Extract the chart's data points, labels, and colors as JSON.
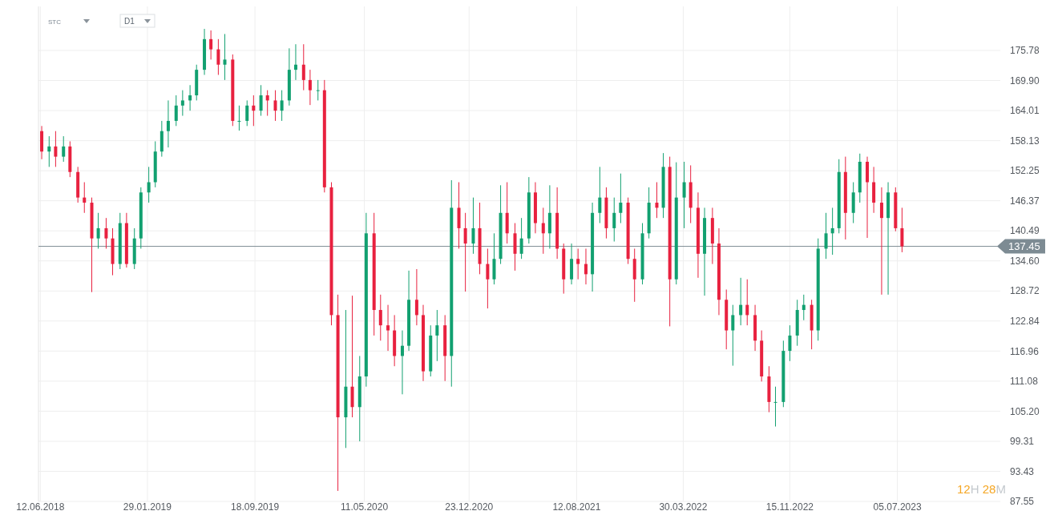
{
  "chart_data": {
    "type": "candlestick",
    "annotations": [
      "STC",
      "D1",
      "12H 28M"
    ],
    "x": [
      "2018-06-15",
      "2018-07-01",
      "2018-07-15",
      "2018-08-01",
      "2018-08-15",
      "2018-09-01",
      "2018-09-15",
      "2018-10-01",
      "2018-10-15",
      "2018-11-01",
      "2018-11-15",
      "2018-12-01",
      "2018-12-15",
      "2019-01-01",
      "2019-01-15",
      "2019-02-01",
      "2019-02-15",
      "2019-03-01",
      "2019-03-15",
      "2019-04-01",
      "2019-04-15",
      "2019-05-01",
      "2019-05-15",
      "2019-06-01",
      "2019-06-15",
      "2019-07-01",
      "2019-07-15",
      "2019-08-01",
      "2019-08-15",
      "2019-09-01",
      "2019-09-15",
      "2019-10-01",
      "2019-10-15",
      "2019-11-01",
      "2019-11-15",
      "2019-12-01",
      "2019-12-15",
      "2020-01-01",
      "2020-01-15",
      "2020-02-01",
      "2020-02-15",
      "2020-03-01",
      "2020-03-15",
      "2020-04-01",
      "2020-04-15",
      "2020-05-01",
      "2020-05-15",
      "2020-06-01",
      "2020-06-15",
      "2020-07-01",
      "2020-07-15",
      "2020-08-01",
      "2020-08-15",
      "2020-09-01",
      "2020-09-15",
      "2020-10-01",
      "2020-10-15",
      "2020-11-01",
      "2020-11-15",
      "2020-12-01",
      "2020-12-15",
      "2021-01-01",
      "2021-01-15",
      "2021-02-01",
      "2021-02-15",
      "2021-03-01",
      "2021-03-15",
      "2021-04-01",
      "2021-04-15",
      "2021-05-01",
      "2021-05-15",
      "2021-06-01",
      "2021-06-15",
      "2021-07-01",
      "2021-07-15",
      "2021-08-01",
      "2021-08-15",
      "2021-09-01",
      "2021-09-15",
      "2021-10-01",
      "2021-10-15",
      "2021-11-01",
      "2021-11-15",
      "2021-12-01",
      "2021-12-15",
      "2022-01-01",
      "2022-01-15",
      "2022-02-01",
      "2022-02-15",
      "2022-03-01",
      "2022-03-15",
      "2022-04-01",
      "2022-04-15",
      "2022-05-01",
      "2022-05-15",
      "2022-06-01",
      "2022-06-15",
      "2022-07-01",
      "2022-07-15",
      "2022-08-01",
      "2022-08-15",
      "2022-09-01",
      "2022-09-15",
      "2022-10-01",
      "2022-10-15",
      "2022-11-01",
      "2022-11-15",
      "2022-12-01",
      "2022-12-15",
      "2023-01-01",
      "2023-01-15",
      "2023-02-01",
      "2023-02-15",
      "2023-03-01",
      "2023-03-15",
      "2023-04-01",
      "2023-04-15",
      "2023-05-01",
      "2023-05-15",
      "2023-06-01",
      "2023-06-15",
      "2023-07-01",
      "2023-07-15"
    ],
    "ohlc": [
      [
        160,
        161,
        154.5,
        156
      ],
      [
        156,
        159,
        153,
        157
      ],
      [
        157,
        160,
        153,
        155
      ],
      [
        155,
        159,
        154,
        157
      ],
      [
        157,
        158,
        151,
        152
      ],
      [
        152,
        153,
        146,
        147
      ],
      [
        147,
        150,
        144,
        146
      ],
      [
        146,
        147,
        128.5,
        139
      ],
      [
        139,
        144,
        137,
        141
      ],
      [
        141,
        143,
        137,
        139
      ],
      [
        139,
        141,
        131.8,
        134
      ],
      [
        134,
        144,
        133,
        142
      ],
      [
        142,
        144,
        133.3,
        134
      ],
      [
        134,
        141,
        133,
        139
      ],
      [
        139,
        149,
        137,
        148
      ],
      [
        148,
        153,
        146,
        150
      ],
      [
        150,
        158,
        149,
        156
      ],
      [
        156,
        162,
        155,
        160
      ],
      [
        160,
        166,
        156.8,
        162
      ],
      [
        162,
        167,
        161,
        165
      ],
      [
        165,
        168,
        163,
        166
      ],
      [
        166,
        169,
        164,
        167
      ],
      [
        167,
        173,
        166,
        172
      ],
      [
        172,
        180,
        171,
        178
      ],
      [
        178,
        179.7,
        174,
        176
      ],
      [
        176,
        178,
        171,
        173
      ],
      [
        173,
        179,
        170,
        174
      ],
      [
        174,
        175,
        161,
        162
      ],
      [
        162,
        165,
        160.1,
        162
      ],
      [
        162,
        166,
        161,
        165
      ],
      [
        165,
        167,
        161,
        164
      ],
      [
        164,
        169,
        163,
        167
      ],
      [
        167,
        168,
        163,
        166
      ],
      [
        166,
        168,
        162,
        164
      ],
      [
        164,
        168,
        162,
        166
      ],
      [
        166,
        176.2,
        165,
        172
      ],
      [
        172,
        177,
        170,
        173
      ],
      [
        173,
        177,
        168,
        170
      ],
      [
        170,
        172,
        165.1,
        168
      ],
      [
        168,
        170,
        166,
        168
      ],
      [
        168,
        170,
        148,
        149
      ],
      [
        149,
        150,
        122,
        124
      ],
      [
        124,
        128,
        89.6,
        104
      ],
      [
        104,
        125,
        98,
        110
      ],
      [
        110,
        127.8,
        104,
        106
      ],
      [
        106,
        116,
        99.3,
        112
      ],
      [
        112,
        144,
        110,
        140
      ],
      [
        140,
        144,
        120,
        125
      ],
      [
        125,
        128,
        119,
        122
      ],
      [
        122,
        126,
        117,
        121
      ],
      [
        121,
        124,
        114,
        116
      ],
      [
        116,
        121,
        108.5,
        118
      ],
      [
        118,
        132.7,
        117,
        127
      ],
      [
        127,
        133,
        122,
        124
      ],
      [
        124,
        126,
        111.1,
        113
      ],
      [
        113,
        122,
        112,
        120
      ],
      [
        120,
        125,
        115,
        122
      ],
      [
        122,
        124,
        111.1,
        116
      ],
      [
        116,
        150.4,
        110,
        145
      ],
      [
        145,
        150,
        137,
        141
      ],
      [
        141,
        144,
        128.6,
        138
      ],
      [
        138,
        147,
        136,
        141
      ],
      [
        141,
        146,
        132,
        134
      ],
      [
        134,
        137,
        125.3,
        131
      ],
      [
        131,
        140,
        130,
        135
      ],
      [
        135,
        149.4,
        134,
        144
      ],
      [
        144,
        150,
        138,
        140
      ],
      [
        140,
        142,
        132.7,
        136
      ],
      [
        136,
        143,
        135,
        139
      ],
      [
        139,
        151,
        138,
        148
      ],
      [
        148,
        150,
        140,
        142
      ],
      [
        142,
        145,
        136,
        140
      ],
      [
        140,
        149.4,
        137,
        144
      ],
      [
        144,
        149,
        135,
        137
      ],
      [
        137,
        138,
        128.2,
        131
      ],
      [
        131,
        138,
        130,
        135
      ],
      [
        135,
        137,
        131,
        134
      ],
      [
        134,
        137,
        130,
        132
      ],
      [
        132,
        146,
        128.6,
        144
      ],
      [
        144,
        153,
        142,
        147
      ],
      [
        147,
        149,
        139,
        141
      ],
      [
        141,
        147,
        138.4,
        144
      ],
      [
        144,
        151.7,
        142,
        146
      ],
      [
        146,
        147,
        134,
        135
      ],
      [
        135,
        137,
        126.6,
        131
      ],
      [
        131,
        142,
        130,
        140
      ],
      [
        140,
        149,
        139,
        146
      ],
      [
        146,
        150,
        143,
        145
      ],
      [
        145,
        155.7,
        143,
        153
      ],
      [
        153,
        155,
        121.8,
        131
      ],
      [
        131,
        153.9,
        130,
        147
      ],
      [
        147,
        154,
        141,
        150
      ],
      [
        150,
        153.3,
        142,
        145
      ],
      [
        145,
        148,
        131.3,
        136
      ],
      [
        136,
        145,
        127.8,
        143
      ],
      [
        143,
        145,
        134,
        138
      ],
      [
        138,
        141,
        124,
        127
      ],
      [
        127,
        129,
        117.3,
        121
      ],
      [
        121,
        126,
        114.1,
        124
      ],
      [
        124,
        131.3,
        122,
        126
      ],
      [
        126,
        131,
        122,
        124
      ],
      [
        124,
        126,
        117,
        119
      ],
      [
        119,
        121,
        111,
        112
      ],
      [
        112,
        114,
        105,
        107
      ],
      [
        107,
        110,
        102.2,
        107
      ],
      [
        107,
        119,
        106,
        117
      ],
      [
        117,
        122,
        115,
        120
      ],
      [
        120,
        127,
        118,
        125
      ],
      [
        125,
        128,
        123,
        126
      ],
      [
        126,
        127,
        117.3,
        121
      ],
      [
        121,
        139,
        119,
        137
      ],
      [
        137,
        144,
        135,
        140
      ],
      [
        140,
        145,
        135.8,
        141
      ],
      [
        141,
        154.5,
        140,
        152
      ],
      [
        152,
        155,
        138.8,
        144
      ],
      [
        144,
        150,
        142,
        148
      ],
      [
        148,
        155.6,
        146,
        154
      ],
      [
        154,
        155,
        139.1,
        150
      ],
      [
        150,
        153,
        144,
        146
      ],
      [
        146,
        149,
        128,
        143
      ],
      [
        143,
        150,
        128,
        148
      ],
      [
        148,
        149,
        140.4,
        141
      ],
      [
        141,
        145,
        136.3,
        137.45
      ]
    ],
    "colors": [
      "#e8213f",
      "#12a070",
      "#e8213f",
      "#12a070",
      "#e8213f",
      "#e8213f",
      "#e8213f",
      "#e8213f",
      "#12a070",
      "#e8213f",
      "#e8213f",
      "#12a070",
      "#e8213f",
      "#12a070",
      "#12a070",
      "#12a070",
      "#12a070",
      "#12a070",
      "#12a070",
      "#12a070",
      "#12a070",
      "#12a070",
      "#12a070",
      "#12a070",
      "#e8213f",
      "#e8213f",
      "#12a070",
      "#e8213f",
      "#12a070",
      "#12a070",
      "#e8213f",
      "#12a070",
      "#e8213f",
      "#e8213f",
      "#12a070",
      "#12a070",
      "#12a070",
      "#e8213f",
      "#e8213f",
      "#12a070",
      "#e8213f",
      "#e8213f",
      "#e8213f",
      "#12a070",
      "#e8213f",
      "#12a070",
      "#12a070",
      "#e8213f",
      "#e8213f",
      "#e8213f",
      "#e8213f",
      "#12a070",
      "#12a070",
      "#e8213f",
      "#e8213f",
      "#12a070",
      "#12a070",
      "#e8213f",
      "#12a070",
      "#e8213f",
      "#e8213f",
      "#12a070",
      "#e8213f",
      "#e8213f",
      "#12a070",
      "#12a070",
      "#e8213f",
      "#e8213f",
      "#12a070",
      "#12a070",
      "#e8213f",
      "#e8213f",
      "#12a070",
      "#e8213f",
      "#e8213f",
      "#12a070",
      "#e8213f",
      "#e8213f",
      "#12a070",
      "#12a070",
      "#e8213f",
      "#12a070",
      "#12a070",
      "#e8213f",
      "#e8213f",
      "#12a070",
      "#12a070",
      "#e8213f",
      "#12a070",
      "#e8213f",
      "#12a070",
      "#12a070",
      "#e8213f",
      "#e8213f",
      "#12a070",
      "#e8213f",
      "#e8213f",
      "#e8213f",
      "#12a070",
      "#12a070",
      "#e8213f",
      "#e8213f",
      "#e8213f",
      "#e8213f",
      "#12a070",
      "#12a070",
      "#12a070",
      "#12a070",
      "#12a070",
      "#e8213f",
      "#12a070",
      "#12a070",
      "#12a070",
      "#12a070",
      "#e8213f",
      "#12a070",
      "#12a070",
      "#e8213f",
      "#e8213f",
      "#e8213f",
      "#12a070",
      "#e8213f",
      "#e8213f"
    ],
    "xlim": [
      "2018-06-08",
      "2024-02-12"
    ],
    "xticks": [
      {
        "value": "2018-06-12",
        "label": "12.06.2018"
      },
      {
        "value": "2019-01-29",
        "label": "29.01.2019"
      },
      {
        "value": "2019-09-18",
        "label": "18.09.2019"
      },
      {
        "value": "2020-05-11",
        "label": "11.05.2020"
      },
      {
        "value": "2020-12-23",
        "label": "23.12.2020"
      },
      {
        "value": "2021-08-12",
        "label": "12.08.2021"
      },
      {
        "value": "2022-03-30",
        "label": "30.03.2022"
      },
      {
        "value": "2022-11-15",
        "label": "15.11.2022"
      },
      {
        "value": "2023-07-05",
        "label": "05.07.2023"
      }
    ],
    "ylim": [
      87.55,
      184.4
    ],
    "yticks": [
      87.55,
      93.43,
      99.31,
      {
        "value": 105.2,
        "label": "105.20"
      },
      111.08,
      116.96,
      122.84,
      128.72,
      {
        "value": 134.6,
        "label": "134.60"
      },
      140.49,
      146.37,
      152.25,
      158.13,
      164.01,
      {
        "value": 169.9,
        "label": "169.90"
      },
      175.78
    ],
    "ref_lines": [
      {
        "axis": "y",
        "value": 137.45,
        "label": "137.45",
        "color": "#7d8b93"
      }
    ],
    "grid": true
  }
}
